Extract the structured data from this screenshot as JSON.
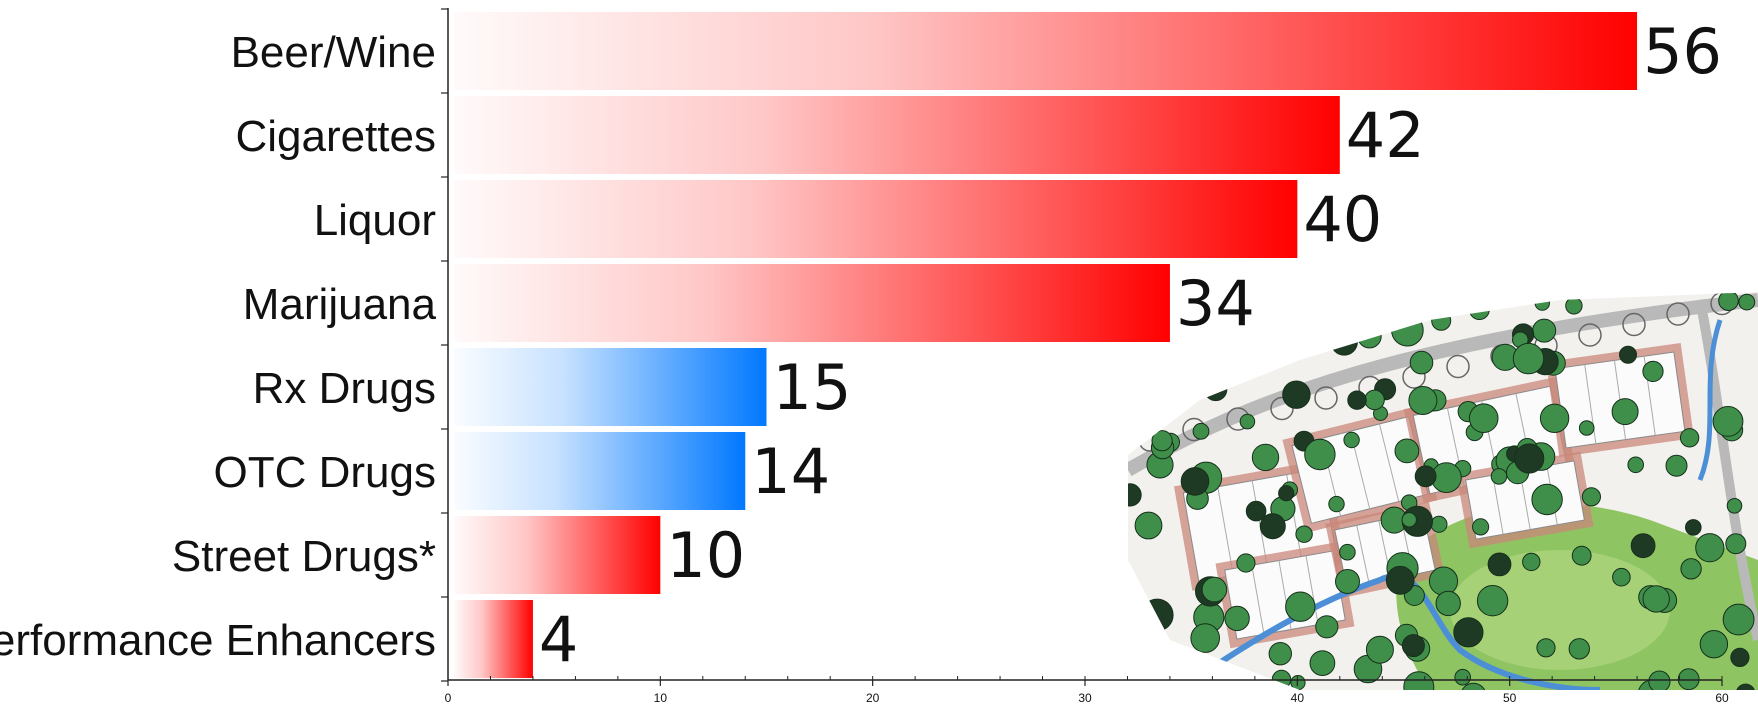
{
  "chart_data": {
    "type": "bar",
    "orientation": "horizontal",
    "categories": [
      "Beer/Wine",
      "Cigarettes",
      "Liquor",
      "Marijuana",
      "Rx Drugs",
      "OTC Drugs",
      "Street Drugs*",
      "Performance Enhancers"
    ],
    "values": [
      56,
      42,
      40,
      34,
      15,
      14,
      10,
      4
    ],
    "data_labels": [
      "56",
      "42",
      "40",
      "34",
      "15",
      "14",
      "10",
      "4"
    ],
    "bar_colors": [
      "red",
      "red",
      "red",
      "red",
      "blue",
      "blue",
      "red",
      "red"
    ],
    "palette": {
      "red": "#ff0000",
      "blue": "#0078ff",
      "axis": "#222222"
    },
    "title": "",
    "xlabel": "",
    "ylabel": "",
    "xlim": [
      0,
      60
    ],
    "major_ticks": [
      0,
      10,
      20,
      30,
      40,
      50,
      60
    ],
    "tick_labels": [
      "0",
      "10",
      "20",
      "30",
      "40",
      "50",
      "60"
    ],
    "minor_tick_step": 2,
    "grid": false,
    "legend": "none",
    "background_image": "site-plan-illustration"
  }
}
